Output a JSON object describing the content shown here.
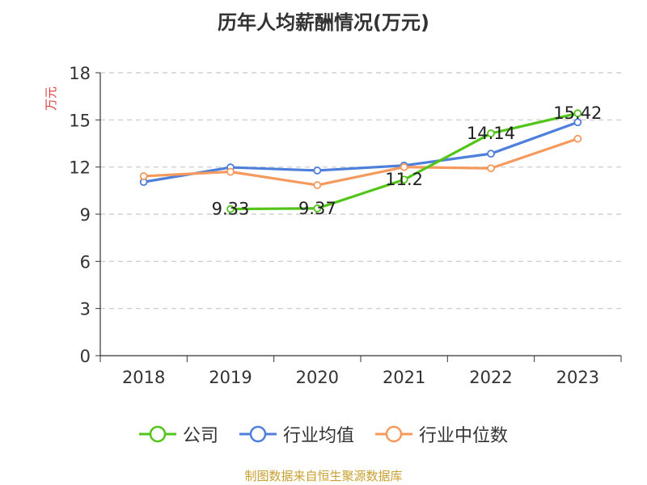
{
  "chart_data": {
    "type": "line",
    "title": "历年人均薪酬情况(万元)",
    "ylabel": "万元",
    "xlabel": "",
    "categories": [
      "2018",
      "2019",
      "2020",
      "2021",
      "2022",
      "2023"
    ],
    "ylim": [
      0,
      18
    ],
    "yticks": [
      0,
      3,
      6,
      9,
      12,
      15,
      18
    ],
    "grid": true,
    "legend_position": "bottom",
    "series": [
      {
        "name": "公司",
        "color": "#52c41a",
        "values": [
          null,
          9.33,
          9.37,
          11.2,
          14.14,
          15.42
        ],
        "labels": [
          "",
          "9.33",
          "9.37",
          "11.2",
          "14.14",
          "15.42"
        ]
      },
      {
        "name": "行业均值",
        "color": "#4e7fdb",
        "values": [
          11.05,
          11.98,
          11.78,
          12.1,
          12.85,
          14.85
        ]
      },
      {
        "name": "行业中位数",
        "color": "#f59a5e",
        "values": [
          11.42,
          11.7,
          10.85,
          12.0,
          11.92,
          13.8
        ]
      }
    ]
  },
  "source": {
    "text": "制图数据来自恒生聚源数据库",
    "color": "#c8a032"
  }
}
